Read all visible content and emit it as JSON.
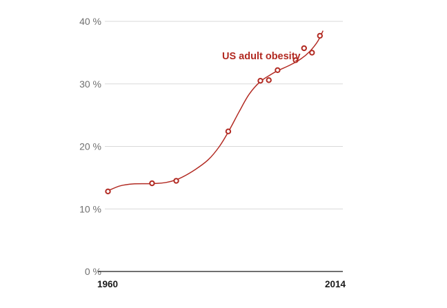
{
  "chart_data": {
    "type": "line",
    "title": "",
    "xlabel": "",
    "ylabel": "",
    "xlim": [
      1960,
      2014
    ],
    "ylim": [
      0,
      40
    ],
    "y_ticks": [
      0,
      10,
      20,
      30,
      40
    ],
    "y_tick_labels": [
      "0 %",
      "10 %",
      "20 %",
      "30 %",
      "40 %"
    ],
    "x_tick_labels": [
      {
        "value": 1960,
        "label": "1960"
      },
      {
        "value": 2014,
        "label": "2014"
      }
    ],
    "grid": "horizontal",
    "series": [
      {
        "name": "US adult obesity",
        "color": "#b22a22",
        "markers": "open-circle",
        "points": [
          {
            "x": 1960.7,
            "y": 12.8
          },
          {
            "x": 1970.7,
            "y": 14.1
          },
          {
            "x": 1976.2,
            "y": 14.5
          },
          {
            "x": 1988.0,
            "y": 22.4
          },
          {
            "x": 1995.3,
            "y": 30.5
          },
          {
            "x": 1997.2,
            "y": 30.6
          },
          {
            "x": 1999.2,
            "y": 32.2
          },
          {
            "x": 2003.3,
            "y": 33.8
          },
          {
            "x": 2005.2,
            "y": 35.7
          },
          {
            "x": 2007.0,
            "y": 35.0
          },
          {
            "x": 2008.8,
            "y": 37.7
          }
        ],
        "trend": [
          {
            "x": 1960.7,
            "y": 12.9
          },
          {
            "x": 1963.5,
            "y": 13.7
          },
          {
            "x": 1966.5,
            "y": 14.0
          },
          {
            "x": 1970.7,
            "y": 14.05
          },
          {
            "x": 1974.0,
            "y": 14.25
          },
          {
            "x": 1977.0,
            "y": 14.9
          },
          {
            "x": 1980.5,
            "y": 16.3
          },
          {
            "x": 1983.5,
            "y": 17.9
          },
          {
            "x": 1986.0,
            "y": 20.0
          },
          {
            "x": 1988.0,
            "y": 22.3
          },
          {
            "x": 1990.5,
            "y": 25.6
          },
          {
            "x": 1992.7,
            "y": 28.3
          },
          {
            "x": 1995.0,
            "y": 30.2
          },
          {
            "x": 1997.2,
            "y": 31.3
          },
          {
            "x": 1999.2,
            "y": 32.1
          },
          {
            "x": 2002.0,
            "y": 33.0
          },
          {
            "x": 2004.5,
            "y": 34.0
          },
          {
            "x": 2006.5,
            "y": 35.2
          },
          {
            "x": 2008.3,
            "y": 36.8
          },
          {
            "x": 2009.5,
            "y": 38.5
          }
        ]
      }
    ]
  },
  "labels": {
    "series_label": "US adult obesity",
    "x_start": "1960",
    "x_end": "2014"
  },
  "colors": {
    "series": "#b22a22",
    "grid": "#d8d8d8",
    "axis": "#1a1a1a"
  }
}
